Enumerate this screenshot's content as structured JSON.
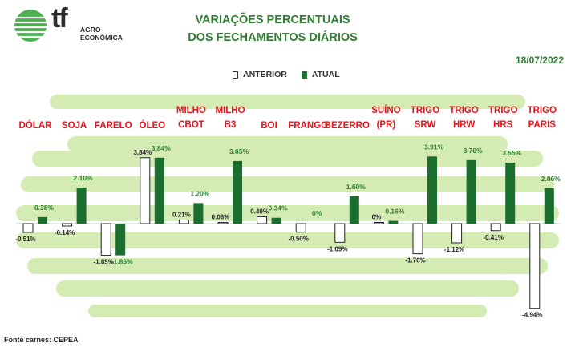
{
  "header": {
    "brand_mark": "tf",
    "brand_line1": "AGRO",
    "brand_line2": "ECONÔMICA",
    "title_line1": "VARIAÇÕES PERCENTUAIS",
    "title_line2": "DOS FECHAMENTOS DIÁRIOS",
    "date": "18/07/2022"
  },
  "legend": {
    "previous": "ANTERIOR",
    "current": "ATUAL"
  },
  "footer": {
    "source": "Fonte carnes: CEPEA"
  },
  "colors": {
    "title": "#2e7d32",
    "category": "#e8141b",
    "current_bar": "#1b6e2e",
    "previous_bar": "#ffffff",
    "stripes": "#d4ecb4"
  },
  "chart_data": {
    "type": "bar",
    "categories": [
      [
        "DÓLAR"
      ],
      [
        "SOJA"
      ],
      [
        "FARELO"
      ],
      [
        "ÓLEO"
      ],
      [
        "MILHO",
        "CBOT"
      ],
      [
        "MILHO",
        "B3"
      ],
      [
        "BOI"
      ],
      [
        "FRANGO"
      ],
      [
        "BEZERRO"
      ],
      [
        "SUÍNO",
        "(PR)"
      ],
      [
        "TRIGO",
        "SRW"
      ],
      [
        "TRIGO",
        "HRW"
      ],
      [
        "TRIGO",
        "HRS"
      ],
      [
        "TRIGO",
        "PARIS"
      ]
    ],
    "series": [
      {
        "name": "ANTERIOR",
        "values": [
          -0.51,
          -0.14,
          -1.85,
          3.84,
          0.21,
          0.06,
          0.4,
          -0.5,
          -1.09,
          0,
          -1.76,
          -1.12,
          -0.41,
          -4.94
        ],
        "labels": [
          "-0.51%",
          "-0.14%",
          "-1.85%",
          "3.84%",
          "0.21%",
          "0.06%",
          "0.40%",
          "-0.50%",
          "-1.09%",
          "0%",
          "-1.76%",
          "-1.12%",
          "-0.41%",
          "-4.94%"
        ]
      },
      {
        "name": "ATUAL",
        "values": [
          0.38,
          2.1,
          -1.85,
          3.84,
          1.2,
          3.65,
          0.34,
          0,
          1.6,
          0.16,
          3.91,
          3.7,
          3.55,
          2.06
        ],
        "labels": [
          "0.38%",
          "2.10%",
          "-1.85%",
          "3.84%",
          "1.20%",
          "3.65%",
          "0.34%",
          "0%",
          "1.60%",
          "0.16%",
          "3.91%",
          "3.70%",
          "3.55%",
          "2.06%"
        ]
      }
    ]
  }
}
